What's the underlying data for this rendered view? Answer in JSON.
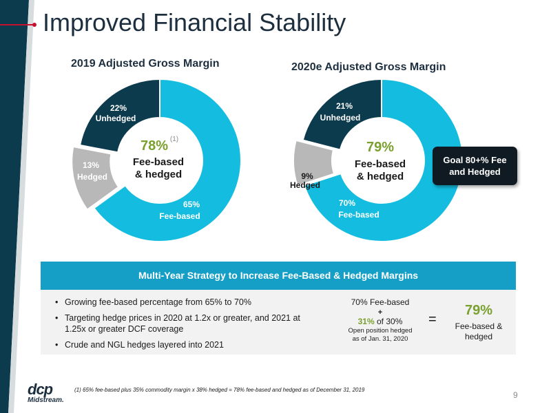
{
  "title": "Improved Financial Stability",
  "colors": {
    "fee_based": "#14bde0",
    "hedged": "#b8b8b8",
    "unhedged": "#0c3b4e",
    "accent_green": "#7aa02e",
    "brand_navy": "#1d2f3f"
  },
  "chart_data": [
    {
      "type": "pie",
      "title": "2019 Adjusted Gross Margin",
      "categories": [
        "Fee-based",
        "Hedged",
        "Unhedged"
      ],
      "values": [
        65,
        13,
        22
      ],
      "slice_labels": [
        {
          "pct": "65%",
          "name": "Fee-based"
        },
        {
          "pct": "13%",
          "name": "Hedged"
        },
        {
          "pct": "22%",
          "name": "Unhedged"
        }
      ],
      "center": {
        "value": "78%",
        "footnote_ref": "(1)",
        "line1": "Fee-based",
        "line2": "& hedged"
      }
    },
    {
      "type": "pie",
      "title": "2020e Adjusted Gross Margin",
      "categories": [
        "Fee-based",
        "Hedged",
        "Unhedged"
      ],
      "values": [
        70,
        9,
        21
      ],
      "slice_labels": [
        {
          "pct": "70%",
          "name": "Fee-based"
        },
        {
          "pct": "9%",
          "name": "Hedged"
        },
        {
          "pct": "21%",
          "name": "Unhedged"
        }
      ],
      "center": {
        "value": "79%",
        "line1": "Fee-based",
        "line2": "& hedged"
      }
    }
  ],
  "goal_box": {
    "line1": "Goal 80+% Fee",
    "line2": "and Hedged"
  },
  "strategy": {
    "header": "Multi-Year Strategy to Increase Fee-Based & Hedged Margins",
    "bullets": [
      "Growing fee-based percentage from 65% to 70%",
      "Targeting hedge prices in 2020 at 1.2x or greater, and 2021 at 1.25x or greater DCF coverage",
      "Crude and NGL hedges layered into 2021"
    ],
    "calc": {
      "line1": "70% Fee-based",
      "plus": "+",
      "pct": "31%",
      "of_text": "of 30%",
      "note1": "Open position hedged",
      "note2": "as of Jan. 31, 2020"
    },
    "equals": "=",
    "result": {
      "value": "79%",
      "line1": "Fee-based &",
      "line2": "hedged"
    }
  },
  "footer": {
    "footnote": "(1)    65% fee-based plus 35% commodity margin x 38% hedged = 78% fee-based and hedged as of December 31, 2019",
    "page_number": "9",
    "logo_main": "dcp",
    "logo_sub": "Midstream."
  }
}
